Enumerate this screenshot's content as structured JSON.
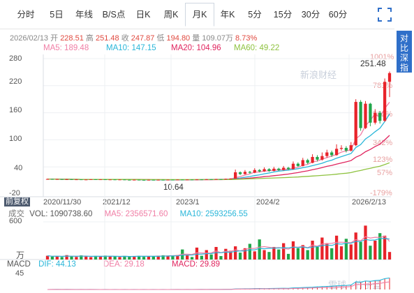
{
  "tabs": [
    "分时",
    "5日",
    "年线",
    "B/S点",
    "日K",
    "周K",
    "月K",
    "年K",
    "5分",
    "15分",
    "30分",
    "60分"
  ],
  "active_tab": "月K",
  "side_button": [
    "对",
    "比",
    "深",
    "指"
  ],
  "info": {
    "date": "2026/02/13",
    "open_label": "开",
    "open": "228.51",
    "high_label": "高",
    "high": "251.48",
    "close_label": "收",
    "close": "247.87",
    "low_label": "低",
    "low": "194.80",
    "vol_label": "量",
    "vol": "109.07万",
    "chg": "8.73%"
  },
  "ma": [
    {
      "label": "MA5:",
      "value": "189.48",
      "color": "#f07ea5"
    },
    {
      "label": "MA10:",
      "value": "147.15",
      "color": "#29b6d9"
    },
    {
      "label": "MA20:",
      "value": "104.96",
      "color": "#e0245e"
    },
    {
      "label": "MA60:",
      "value": "49.22",
      "color": "#8ec23f"
    }
  ],
  "y_ticks": [
    "280",
    "220",
    "160",
    "100",
    "40",
    "-20"
  ],
  "pct_ticks": [
    "1001%",
    "781%",
    "562%",
    "342%",
    "123%",
    "57%",
    "-179%"
  ],
  "x_ticks": [
    "2020/11/30",
    "2021/12",
    "2023/1",
    "2024/2",
    "2026/2/13"
  ],
  "annotations": {
    "max": "251.48",
    "min": "10.64"
  },
  "fuquan": "前复权",
  "vol_row": {
    "prefix": "成交",
    "label": "VOL:",
    "value": "1090738.60",
    "ma5_label": "MA5:",
    "ma5": "2356571.60",
    "ma10_label": "MA10:",
    "ma10": "2593256.55"
  },
  "vol_ticks": {
    "top": "600",
    "unit": "万"
  },
  "macd_row": {
    "label": "MACD",
    "dif_label": "DIF:",
    "dif": "44.13",
    "dea_label": "DEA:",
    "dea": "29.18",
    "macd_label": "MACD:",
    "macd": "29.89"
  },
  "macd_tick": "45",
  "watermarks": [
    "新浪财经",
    "雪球 · 竹子蓝"
  ],
  "colors": {
    "up": "#e8232a",
    "down": "#21a64a",
    "accent": "#2f6fc9"
  },
  "chart_data": {
    "type": "candlestick",
    "period": "monthly",
    "x_range": [
      "2020/11/30",
      "2026/2/13"
    ],
    "ylim": [
      -20,
      280
    ],
    "candles": [
      [
        12.5,
        13.1,
        14.0,
        11.8
      ],
      [
        13.1,
        12.2,
        13.6,
        11.6
      ],
      [
        12.2,
        12.9,
        13.4,
        11.7
      ],
      [
        12.9,
        12.0,
        13.2,
        11.4
      ],
      [
        12.0,
        12.6,
        13.0,
        11.5
      ],
      [
        12.6,
        11.8,
        12.9,
        11.2
      ],
      [
        11.8,
        12.3,
        12.7,
        11.3
      ],
      [
        12.3,
        11.6,
        12.5,
        11.0
      ],
      [
        11.6,
        12.0,
        12.4,
        11.1
      ],
      [
        12.0,
        12.5,
        12.8,
        11.6
      ],
      [
        12.5,
        11.9,
        12.7,
        11.4
      ],
      [
        11.9,
        12.4,
        12.9,
        11.5
      ],
      [
        12.4,
        11.7,
        12.6,
        11.2
      ],
      [
        11.7,
        12.1,
        12.5,
        11.0
      ],
      [
        12.1,
        11.5,
        12.4,
        10.9
      ],
      [
        11.5,
        12.0,
        12.3,
        11.0
      ],
      [
        12.0,
        11.4,
        12.2,
        10.8
      ],
      [
        11.4,
        11.0,
        11.8,
        10.7
      ],
      [
        11.0,
        11.5,
        11.9,
        10.7
      ],
      [
        11.5,
        11.1,
        11.7,
        10.8
      ],
      [
        11.1,
        10.9,
        11.4,
        10.64
      ],
      [
        10.9,
        11.3,
        11.6,
        10.7
      ],
      [
        11.3,
        11.0,
        11.5,
        10.8
      ],
      [
        11.0,
        11.4,
        11.7,
        10.9
      ],
      [
        11.4,
        11.2,
        11.6,
        10.9
      ],
      [
        11.2,
        11.6,
        11.9,
        11.0
      ],
      [
        11.6,
        11.3,
        11.8,
        11.1
      ],
      [
        11.3,
        11.8,
        12.1,
        11.1
      ],
      [
        11.8,
        11.5,
        12.0,
        11.2
      ],
      [
        11.5,
        11.9,
        12.3,
        11.3
      ],
      [
        11.9,
        11.7,
        12.2,
        11.4
      ],
      [
        11.7,
        12.2,
        12.6,
        11.5
      ],
      [
        12.2,
        12.0,
        12.5,
        11.7
      ],
      [
        12.0,
        12.6,
        13.0,
        11.8
      ],
      [
        12.6,
        12.3,
        12.9,
        12.0
      ],
      [
        12.3,
        12.9,
        13.3,
        12.1
      ],
      [
        12.9,
        12.7,
        13.2,
        12.3
      ],
      [
        12.7,
        13.4,
        13.8,
        12.5
      ],
      [
        13.4,
        14.1,
        14.6,
        13.0
      ],
      [
        14.1,
        28.0,
        34.0,
        13.8
      ],
      [
        28.0,
        24.0,
        30.0,
        22.0
      ],
      [
        24.0,
        29.0,
        33.0,
        23.0
      ],
      [
        29.0,
        27.0,
        31.0,
        25.0
      ],
      [
        27.0,
        33.0,
        37.0,
        26.0
      ],
      [
        33.0,
        30.0,
        35.0,
        28.0
      ],
      [
        30.0,
        35.0,
        39.0,
        29.0
      ],
      [
        35.0,
        31.0,
        37.0,
        29.0
      ],
      [
        31.0,
        36.0,
        40.0,
        30.0
      ],
      [
        36.0,
        33.0,
        38.0,
        31.0
      ],
      [
        33.0,
        38.0,
        42.0,
        32.0
      ],
      [
        38.0,
        35.0,
        40.0,
        33.0
      ],
      [
        35.0,
        47.0,
        52.0,
        34.0
      ],
      [
        47.0,
        42.0,
        50.0,
        40.0
      ],
      [
        42.0,
        55.0,
        60.0,
        41.0
      ],
      [
        55.0,
        49.0,
        58.0,
        46.0
      ],
      [
        49.0,
        62.0,
        68.0,
        48.0
      ],
      [
        62.0,
        56.0,
        66.0,
        52.0
      ],
      [
        56.0,
        64.0,
        72.0,
        54.0
      ],
      [
        64.0,
        72.0,
        78.0,
        60.0
      ],
      [
        72.0,
        66.0,
        76.0,
        62.0
      ],
      [
        66.0,
        80.0,
        90.0,
        65.0
      ],
      [
        80.0,
        82.0,
        88.0,
        76.0
      ],
      [
        82.0,
        76.0,
        86.0,
        72.0
      ],
      [
        76.0,
        88.0,
        95.0,
        74.0
      ],
      [
        88.0,
        184.0,
        190.0,
        86.0
      ],
      [
        184.0,
        126.0,
        188.0,
        120.0
      ],
      [
        126.0,
        180.0,
        186.0,
        124.0
      ],
      [
        180.0,
        138.0,
        182.0,
        130.0
      ],
      [
        138.0,
        160.0,
        168.0,
        134.0
      ],
      [
        160.0,
        142.0,
        164.0,
        136.0
      ],
      [
        142.0,
        228.51,
        236.0,
        140.0
      ],
      [
        228.51,
        247.87,
        251.48,
        194.8
      ]
    ],
    "volume": [
      60,
      45,
      55,
      40,
      70,
      50,
      42,
      66,
      48,
      38,
      58,
      44,
      62,
      52,
      46,
      40,
      57,
      48,
      54,
      60,
      43,
      50,
      56,
      62,
      68,
      58,
      64,
      70,
      160,
      72,
      40,
      190,
      60,
      150,
      80,
      200,
      55,
      170,
      140,
      210,
      110,
      180,
      250,
      130,
      320,
      150,
      120,
      200,
      160,
      260,
      90,
      290,
      180,
      230,
      150,
      300,
      200,
      350,
      260,
      180,
      380,
      210,
      330,
      240,
      430,
      280,
      540,
      220,
      300,
      420,
      380,
      120
    ],
    "vol_ylim": [
      0,
      600
    ],
    "macd": [
      0,
      0.2,
      0.3,
      0.2,
      0.3,
      0.2,
      0.1,
      0.2,
      0.1,
      0.2,
      0.1,
      0.0,
      0.1,
      0.0,
      0.1,
      0.0,
      0.1,
      0.0,
      0.1,
      0.0,
      0.1,
      0.0,
      0.1,
      0.0,
      0.1,
      0.0,
      0.1,
      0.2,
      0.1,
      0.2,
      0.1,
      0.2,
      0.3,
      0.2,
      0.3,
      0.4,
      0.3,
      0.5,
      0.6,
      1.5,
      1.8,
      2.0,
      1.9,
      2.3,
      2.5,
      2.4,
      2.6,
      2.8,
      3.0,
      3.3,
      3.1,
      4.2,
      4.5,
      5.0,
      5.5,
      6.0,
      6.8,
      7.5,
      8.0,
      8.4,
      9.5,
      10.0,
      10.5,
      11.5,
      20.0,
      19.0,
      22.0,
      21.0,
      23.0,
      24.0,
      28.0,
      29.89
    ],
    "macd_ylim": [
      0,
      45
    ]
  }
}
